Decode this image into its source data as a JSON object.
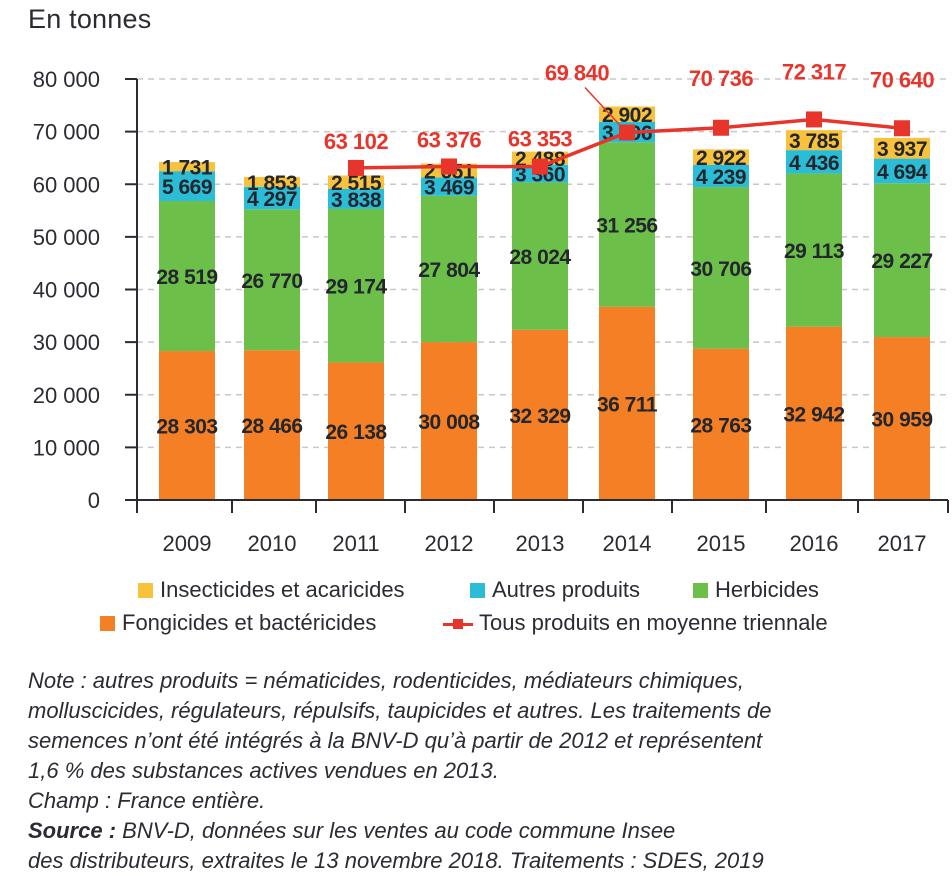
{
  "chart_data": {
    "type": "bar",
    "stacked": true,
    "title": "",
    "unit_label": "En tonnes",
    "xlabel": "",
    "ylabel": "En tonnes",
    "ylim": [
      0,
      80000
    ],
    "yticks": [
      0,
      10000,
      20000,
      30000,
      40000,
      50000,
      60000,
      70000,
      80000
    ],
    "ytick_labels": [
      "0",
      "10 000",
      "20 000",
      "30 000",
      "40 000",
      "50 000",
      "60 000",
      "70 000",
      "80 000"
    ],
    "grid": "horizontal-dashed",
    "categories": [
      "2009",
      "2010",
      "2011",
      "2012",
      "2013",
      "2014",
      "2015",
      "2016",
      "2017"
    ],
    "series": [
      {
        "name": "Fongicides et bactéricides",
        "color": "#f47f24",
        "values": [
          28303,
          28466,
          26138,
          30008,
          32329,
          36711,
          28763,
          32942,
          30959
        ],
        "labels": [
          "28 303",
          "28 466",
          "26 138",
          "30 008",
          "32 329",
          "36 711",
          "28 763",
          "32 942",
          "30 959"
        ]
      },
      {
        "name": "Herbicides",
        "color": "#6cc04a",
        "values": [
          28519,
          26770,
          29174,
          27804,
          28024,
          31256,
          30706,
          29113,
          29227
        ],
        "labels": [
          "28 519",
          "26 770",
          "29 174",
          "27 804",
          "28 024",
          "31 256",
          "30 706",
          "29 113",
          "29 227"
        ]
      },
      {
        "name": "Autres produits",
        "color": "#2bbcd6",
        "values": [
          5669,
          4297,
          3838,
          3469,
          3360,
          3906,
          4239,
          4436,
          4694
        ],
        "labels": [
          "5 669",
          "4 297",
          "3 838",
          "3 469",
          "3 360",
          "3 906",
          "4 239",
          "4 436",
          "4 694"
        ]
      },
      {
        "name": "Insecticides et acaricides",
        "color": "#f9c23c",
        "values": [
          1731,
          1853,
          2515,
          2651,
          2488,
          2902,
          2922,
          3785,
          3937
        ],
        "labels": [
          "1 731",
          "1 853",
          "2 515",
          "2 651",
          "2 488",
          "2 902",
          "2 922",
          "3 785",
          "3 937"
        ]
      }
    ],
    "line_series": {
      "name": "Tous produits en moyenne triennale",
      "type": "line",
      "color": "#e8352b",
      "values": [
        null,
        null,
        63102,
        63376,
        63353,
        69840,
        70736,
        72317,
        70640
      ],
      "labels": [
        "",
        "",
        "63 102",
        "63 376",
        "63 353",
        "69 840",
        "70 736",
        "72 317",
        "70 640"
      ]
    },
    "legend": {
      "placement": "bottom",
      "row1": [
        "Insecticides et acaricides",
        "Autres produits",
        "Herbicides"
      ],
      "row2": [
        "Fongicides et bactéricides",
        "Tous produits en moyenne triennale"
      ]
    }
  },
  "notes": {
    "line1": "Note : autres produits = nématicides, rodenticides, médiateurs chimiques,",
    "line2": "molluscicides, régulateurs, répulsifs, taupicides et autres. Les traitements de",
    "line3": "semences n’ont été intégrés à la BNV-D qu’à partir de 2012 et représentent",
    "line4": "1,6 % des substances actives vendues en 2013.",
    "line5": "Champ : France entière.",
    "source_label": "Source :",
    "source_line1": " BNV-D, données sur les ventes au code commune Insee",
    "source_line2": "des distributeurs, extraites le 13 novembre 2018. Traitements : SDES, 2019"
  }
}
